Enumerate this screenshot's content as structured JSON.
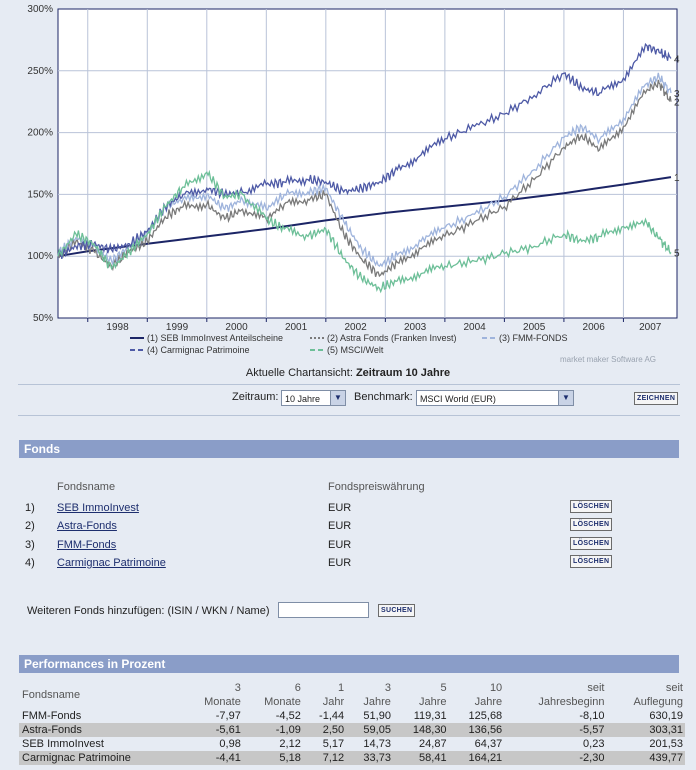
{
  "chart_data": {
    "type": "line",
    "title": "",
    "ylabel": "",
    "xlabel": "",
    "ylim": [
      50,
      300
    ],
    "y_ticks": [
      "300%",
      "250%",
      "200%",
      "150%",
      "100%",
      "50%"
    ],
    "y_tick_values": [
      300,
      250,
      200,
      150,
      100,
      50
    ],
    "x_ticks": [
      "1998",
      "1999",
      "2000",
      "2001",
      "2002",
      "2003",
      "2004",
      "2005",
      "2006",
      "2007"
    ],
    "xlim": [
      1997.5,
      2007.9
    ],
    "series": [
      {
        "id": "1",
        "name": "(1) SEB ImmoInvest Anteilscheine",
        "color": "#1c2566",
        "end_label": "1",
        "x": [
          1997.5,
          1998.0,
          1999.0,
          2000.0,
          2001.0,
          2002.0,
          2003.0,
          2004.0,
          2005.0,
          2006.0,
          2007.0,
          2007.8
        ],
        "y": [
          100,
          104,
          110,
          116,
          122,
          129,
          135,
          140,
          145,
          151,
          158,
          164
        ]
      },
      {
        "id": "2",
        "name": "(2) Astra Fonds (Franken Invest)",
        "color": "#7a7a7a",
        "end_label": "2",
        "x": [
          1997.5,
          1997.8,
          1998.1,
          1998.4,
          1998.7,
          1999.0,
          1999.3,
          1999.6,
          2000.0,
          2000.3,
          2000.6,
          2001.0,
          2001.3,
          2001.7,
          2002.0,
          2002.3,
          2002.6,
          2002.9,
          2003.2,
          2003.6,
          2004.0,
          2004.5,
          2005.0,
          2005.5,
          2006.0,
          2006.3,
          2006.6,
          2007.0,
          2007.4,
          2007.6,
          2007.8
        ],
        "y": [
          100,
          112,
          104,
          92,
          104,
          112,
          132,
          140,
          142,
          130,
          138,
          130,
          142,
          146,
          150,
          118,
          98,
          84,
          95,
          106,
          116,
          128,
          140,
          162,
          188,
          198,
          186,
          205,
          235,
          240,
          225
        ]
      },
      {
        "id": "3",
        "name": "(3) FMM-FONDS",
        "color": "#9fb4dc",
        "end_label": "3",
        "x": [
          1997.5,
          1997.8,
          1998.1,
          1998.4,
          1998.7,
          1999.0,
          1999.3,
          1999.6,
          2000.0,
          2000.3,
          2000.6,
          2001.0,
          2001.3,
          2001.7,
          2002.0,
          2002.3,
          2002.6,
          2002.9,
          2003.2,
          2003.6,
          2004.0,
          2004.5,
          2005.0,
          2005.5,
          2006.0,
          2006.3,
          2006.6,
          2007.0,
          2007.4,
          2007.6,
          2007.8
        ],
        "y": [
          102,
          115,
          108,
          96,
          108,
          118,
          140,
          146,
          150,
          138,
          146,
          138,
          150,
          152,
          155,
          128,
          106,
          92,
          101,
          112,
          123,
          134,
          148,
          170,
          196,
          205,
          194,
          212,
          240,
          245,
          232
        ]
      },
      {
        "id": "4",
        "name": "(4) Carmignac Patrimoine",
        "color": "#4e5aa6",
        "end_label": "4",
        "x": [
          1997.5,
          1997.8,
          1998.1,
          1998.4,
          1998.7,
          1999.0,
          1999.3,
          1999.6,
          2000.0,
          2000.3,
          2000.6,
          2001.0,
          2001.3,
          2001.7,
          2002.0,
          2002.3,
          2002.6,
          2002.9,
          2003.2,
          2003.6,
          2004.0,
          2004.5,
          2005.0,
          2005.5,
          2006.0,
          2006.3,
          2006.6,
          2007.0,
          2007.4,
          2007.6,
          2007.8
        ],
        "y": [
          100,
          108,
          110,
          105,
          110,
          120,
          140,
          150,
          155,
          150,
          152,
          158,
          160,
          162,
          160,
          152,
          155,
          160,
          170,
          182,
          195,
          205,
          215,
          230,
          248,
          236,
          232,
          244,
          270,
          265,
          260
        ]
      },
      {
        "id": "5",
        "name": "(5) MSCI/Welt",
        "color": "#6dbf98",
        "end_label": "5",
        "x": [
          1997.5,
          1997.8,
          1998.1,
          1998.4,
          1998.7,
          1999.0,
          1999.3,
          1999.6,
          2000.0,
          2000.3,
          2000.6,
          2001.0,
          2001.3,
          2001.7,
          2002.0,
          2002.3,
          2002.6,
          2002.9,
          2003.2,
          2003.6,
          2004.0,
          2004.5,
          2005.0,
          2005.5,
          2006.0,
          2006.3,
          2006.6,
          2007.0,
          2007.4,
          2007.6,
          2007.8
        ],
        "y": [
          100,
          118,
          110,
          90,
          104,
          118,
          140,
          156,
          168,
          148,
          150,
          130,
          122,
          116,
          122,
          98,
          82,
          74,
          80,
          86,
          92,
          96,
          102,
          108,
          118,
          112,
          116,
          124,
          126,
          114,
          103
        ]
      }
    ],
    "legend": [
      {
        "text": "(1) SEB ImmoInvest Anteilscheine",
        "color": "#1c2566",
        "style": "solid"
      },
      {
        "text": "(2) Astra Fonds (Franken Invest)",
        "color": "#7a7a7a",
        "style": "dotted"
      },
      {
        "text": "(3) FMM-FONDS",
        "color": "#9fb4dc",
        "style": "dashed"
      },
      {
        "text": "(4) Carmignac Patrimoine",
        "color": "#4e5aa6",
        "style": "dashed"
      },
      {
        "text": "(5) MSCI/Welt",
        "color": "#6dbf98",
        "style": "dashed"
      }
    ]
  },
  "credit": "market maker Software AG",
  "chart_view": {
    "label": "Aktuelle Chartansicht:",
    "value": "Zeitraum 10 Jahre"
  },
  "controls": {
    "zeitraum_label": "Zeitraum:",
    "zeitraum_value": "10 Jahre",
    "benchmark_label": "Benchmark:",
    "benchmark_value": "MSCI World (EUR)",
    "draw_button": "ZEICHNEN"
  },
  "fonds": {
    "title": "Fonds",
    "col_name": "Fondsname",
    "col_currency": "Fondspreiswährung",
    "delete_label": "LÖSCHEN",
    "rows": [
      {
        "idx": "1)",
        "name": "SEB ImmoInvest",
        "currency": "EUR"
      },
      {
        "idx": "2)",
        "name": "Astra-Fonds",
        "currency": "EUR"
      },
      {
        "idx": "3)",
        "name": "FMM-Fonds",
        "currency": "EUR"
      },
      {
        "idx": "4)",
        "name": "Carmignac Patrimoine",
        "currency": "EUR"
      }
    ],
    "add_label": "Weiteren Fonds hinzufügen: (ISIN / WKN / Name)",
    "add_value": "",
    "search_button": "SUCHEN"
  },
  "performance": {
    "title": "Performances in Prozent",
    "header_top": [
      "",
      "3",
      "6",
      "1",
      "3",
      "5",
      "10",
      "seit",
      "seit"
    ],
    "header_bottom": [
      "Fondsname",
      "Monate",
      "Monate",
      "Jahr",
      "Jahre",
      "Jahre",
      "Jahre",
      "Jahresbeginn",
      "Auflegung"
    ],
    "rows": [
      [
        "FMM-Fonds",
        "-7,97",
        "-4,52",
        "-1,44",
        "51,90",
        "119,31",
        "125,68",
        "-8,10",
        "630,19"
      ],
      [
        "Astra-Fonds",
        "-5,61",
        "-1,09",
        "2,50",
        "59,05",
        "148,30",
        "136,56",
        "-5,57",
        "303,31"
      ],
      [
        "SEB ImmoInvest",
        "0,98",
        "2,12",
        "5,17",
        "14,73",
        "24,87",
        "64,37",
        "0,23",
        "201,53"
      ],
      [
        "Carmignac Patrimoine",
        "-4,41",
        "5,18",
        "7,12",
        "33,73",
        "58,41",
        "164,21",
        "-2,30",
        "439,77"
      ]
    ]
  }
}
